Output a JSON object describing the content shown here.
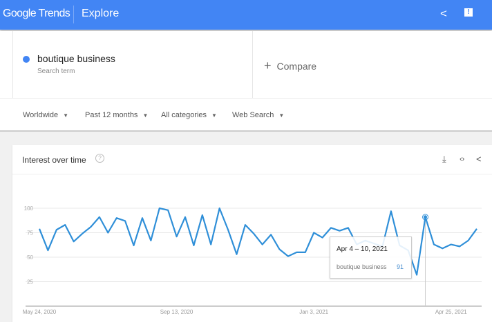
{
  "header": {
    "logo": "Google Trends",
    "title": "Explore",
    "icons": [
      "share-icon",
      "feedback-icon"
    ],
    "color": "#4285f4"
  },
  "search": {
    "term": "boutique business",
    "term_type": "Search term",
    "term_color": "#4285f4",
    "compare_icon": "+",
    "compare_label": "Compare"
  },
  "filters": [
    {
      "label": "Worldwide"
    },
    {
      "label": "Past 12 months"
    },
    {
      "label": "All categories"
    },
    {
      "label": "Web Search"
    }
  ],
  "card": {
    "title": "Interest over time",
    "help": "?",
    "icons": [
      "download-icon",
      "embed-icon",
      "share-icon"
    ]
  },
  "tooltip": {
    "date": "Apr 4 – 10, 2021",
    "term": "boutique business",
    "value": "91"
  },
  "chart_data": {
    "type": "line",
    "x": [
      "2020-05-24",
      "2020-05-31",
      "2020-06-07",
      "2020-06-14",
      "2020-06-21",
      "2020-06-28",
      "2020-07-05",
      "2020-07-12",
      "2020-07-19",
      "2020-07-26",
      "2020-08-02",
      "2020-08-09",
      "2020-08-16",
      "2020-08-23",
      "2020-08-30",
      "2020-09-06",
      "2020-09-13",
      "2020-09-20",
      "2020-09-27",
      "2020-10-04",
      "2020-10-11",
      "2020-10-18",
      "2020-10-25",
      "2020-11-01",
      "2020-11-08",
      "2020-11-15",
      "2020-11-22",
      "2020-11-29",
      "2020-12-06",
      "2020-12-13",
      "2020-12-20",
      "2020-12-27",
      "2021-01-03",
      "2021-01-10",
      "2021-01-17",
      "2021-01-24",
      "2021-01-31",
      "2021-02-07",
      "2021-02-14",
      "2021-02-21",
      "2021-02-28",
      "2021-03-07",
      "2021-03-14",
      "2021-03-21",
      "2021-03-28",
      "2021-04-04",
      "2021-04-11",
      "2021-04-18",
      "2021-04-25",
      "2021-05-02",
      "2021-05-09",
      "2021-05-16"
    ],
    "series": [
      {
        "name": "boutique business",
        "color": "#2f8fd8",
        "values": [
          79,
          57,
          78,
          83,
          66,
          74,
          81,
          91,
          75,
          90,
          87,
          62,
          90,
          67,
          100,
          98,
          71,
          91,
          62,
          93,
          63,
          100,
          78,
          53,
          83,
          74,
          63,
          73,
          58,
          51,
          55,
          55,
          75,
          70,
          80,
          77,
          80,
          63,
          67,
          64,
          61,
          97,
          62,
          57,
          32,
          91,
          63,
          59,
          63,
          61,
          67,
          79
        ]
      }
    ],
    "highlight_index": 45,
    "ylim": [
      0,
      100
    ],
    "yticks": [
      25,
      50,
      75,
      100
    ],
    "xtick_labels": [
      {
        "label": "May 24, 2020",
        "x": "2020-05-24"
      },
      {
        "label": "Sep 13, 2020",
        "x": "2020-09-13"
      },
      {
        "label": "Jan 3, 2021",
        "x": "2021-01-03"
      },
      {
        "label": "Apr 25, 2021",
        "x": "2021-04-25"
      }
    ],
    "grid": true,
    "legend": "none"
  }
}
